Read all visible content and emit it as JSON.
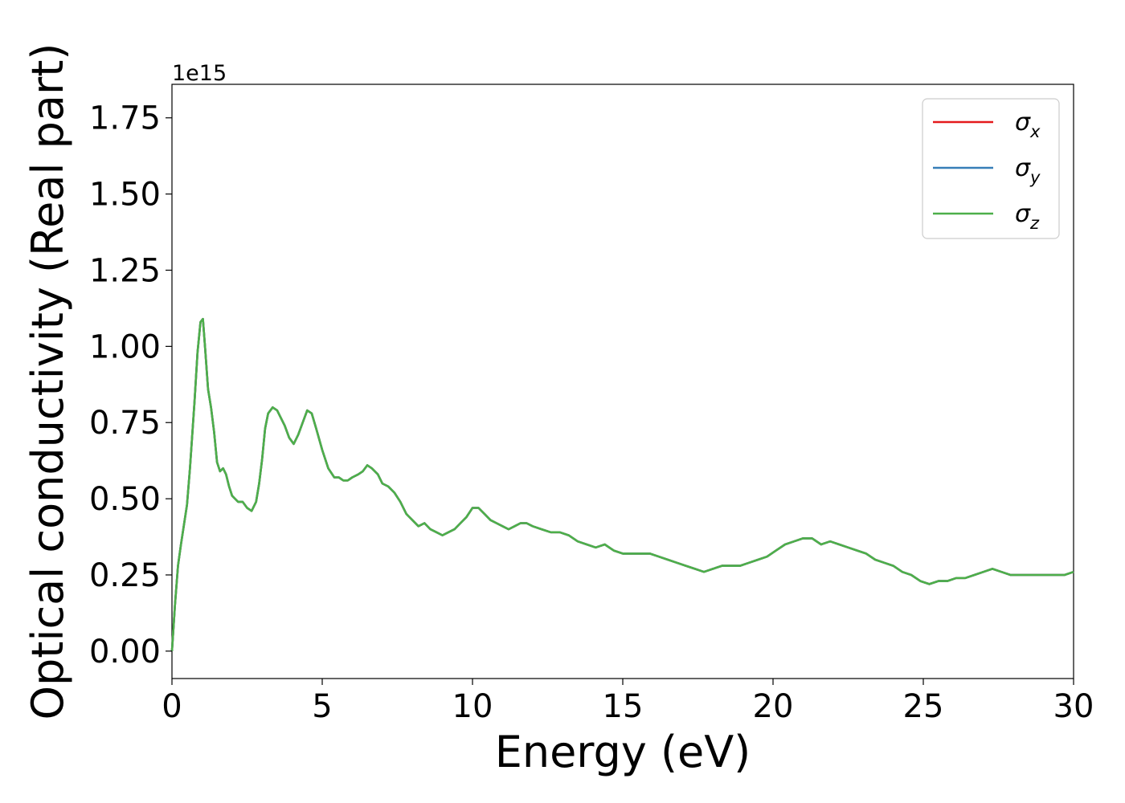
{
  "chart_data": {
    "type": "line",
    "xlabel": "Energy (eV)",
    "ylabel": "Optical conductivity (Real part)",
    "y_offset_label": "1e15",
    "y_scale": 1000000000000000.0,
    "xlim": [
      0,
      30
    ],
    "ylim": [
      -0.09,
      1.86
    ],
    "xticks": [
      0,
      5,
      10,
      15,
      20,
      25,
      30
    ],
    "xtick_labels": [
      "0",
      "5",
      "10",
      "15",
      "20",
      "25",
      "30"
    ],
    "yticks": [
      0.0,
      0.25,
      0.5,
      0.75,
      1.0,
      1.25,
      1.5,
      1.75
    ],
    "ytick_labels": [
      "0.00",
      "0.25",
      "0.50",
      "0.75",
      "1.00",
      "1.25",
      "1.50",
      "1.75"
    ],
    "grid": false,
    "legend_position": "top-right",
    "series": [
      {
        "name": "σx",
        "symbol": "σ",
        "subscript": "x",
        "color": "#e41a1c"
      },
      {
        "name": "σy",
        "symbol": "σ",
        "subscript": "y",
        "color": "#377eb8"
      },
      {
        "name": "σz",
        "symbol": "σ",
        "subscript": "z",
        "color": "#4daf4a"
      }
    ],
    "x": [
      0,
      0.1,
      0.2,
      0.3,
      0.5,
      0.6,
      0.75,
      0.85,
      0.95,
      1.03,
      1.1,
      1.2,
      1.3,
      1.4,
      1.5,
      1.6,
      1.7,
      1.8,
      1.9,
      2.0,
      2.1,
      2.2,
      2.35,
      2.5,
      2.65,
      2.8,
      2.9,
      3.0,
      3.1,
      3.2,
      3.35,
      3.5,
      3.6,
      3.75,
      3.9,
      4.05,
      4.2,
      4.35,
      4.5,
      4.65,
      4.8,
      5.0,
      5.2,
      5.4,
      5.55,
      5.7,
      5.85,
      6.0,
      6.2,
      6.35,
      6.5,
      6.65,
      6.85,
      7.0,
      7.2,
      7.4,
      7.6,
      7.8,
      8.0,
      8.2,
      8.4,
      8.6,
      8.8,
      9.0,
      9.2,
      9.4,
      9.6,
      9.8,
      10.0,
      10.2,
      10.4,
      10.6,
      10.8,
      11.0,
      11.2,
      11.4,
      11.6,
      11.8,
      12.0,
      12.3,
      12.6,
      12.9,
      13.2,
      13.5,
      13.8,
      14.1,
      14.4,
      14.7,
      15.0,
      15.3,
      15.6,
      15.9,
      16.2,
      16.5,
      16.8,
      17.1,
      17.4,
      17.7,
      18.0,
      18.3,
      18.6,
      18.9,
      19.2,
      19.5,
      19.8,
      20.1,
      20.4,
      20.7,
      21.0,
      21.3,
      21.6,
      21.9,
      22.2,
      22.5,
      22.8,
      23.1,
      23.4,
      23.7,
      24.0,
      24.3,
      24.6,
      24.9,
      25.2,
      25.5,
      25.8,
      26.1,
      26.4,
      26.7,
      27.0,
      27.3,
      27.6,
      27.9,
      28.2,
      28.5,
      28.8,
      29.1,
      29.4,
      29.7,
      30.0
    ],
    "y": [
      0.0,
      0.15,
      0.28,
      0.35,
      0.48,
      0.6,
      0.82,
      0.98,
      1.08,
      1.09,
      1.0,
      0.86,
      0.8,
      0.72,
      0.62,
      0.59,
      0.6,
      0.58,
      0.54,
      0.51,
      0.5,
      0.49,
      0.49,
      0.47,
      0.46,
      0.49,
      0.55,
      0.63,
      0.73,
      0.78,
      0.8,
      0.79,
      0.77,
      0.74,
      0.7,
      0.68,
      0.71,
      0.75,
      0.79,
      0.78,
      0.73,
      0.66,
      0.6,
      0.57,
      0.57,
      0.56,
      0.56,
      0.57,
      0.58,
      0.59,
      0.61,
      0.6,
      0.58,
      0.55,
      0.54,
      0.52,
      0.49,
      0.45,
      0.43,
      0.41,
      0.42,
      0.4,
      0.39,
      0.38,
      0.39,
      0.4,
      0.42,
      0.44,
      0.47,
      0.47,
      0.45,
      0.43,
      0.42,
      0.41,
      0.4,
      0.41,
      0.42,
      0.42,
      0.41,
      0.4,
      0.39,
      0.39,
      0.38,
      0.36,
      0.35,
      0.34,
      0.35,
      0.33,
      0.32,
      0.32,
      0.32,
      0.32,
      0.31,
      0.3,
      0.29,
      0.28,
      0.27,
      0.26,
      0.27,
      0.28,
      0.28,
      0.28,
      0.29,
      0.3,
      0.31,
      0.33,
      0.35,
      0.36,
      0.37,
      0.37,
      0.35,
      0.36,
      0.35,
      0.34,
      0.33,
      0.32,
      0.3,
      0.29,
      0.28,
      0.26,
      0.25,
      0.23,
      0.22,
      0.23,
      0.23,
      0.24,
      0.24,
      0.25,
      0.26,
      0.27,
      0.26,
      0.25,
      0.25,
      0.25,
      0.25,
      0.25,
      0.25,
      0.25,
      0.26
    ]
  }
}
